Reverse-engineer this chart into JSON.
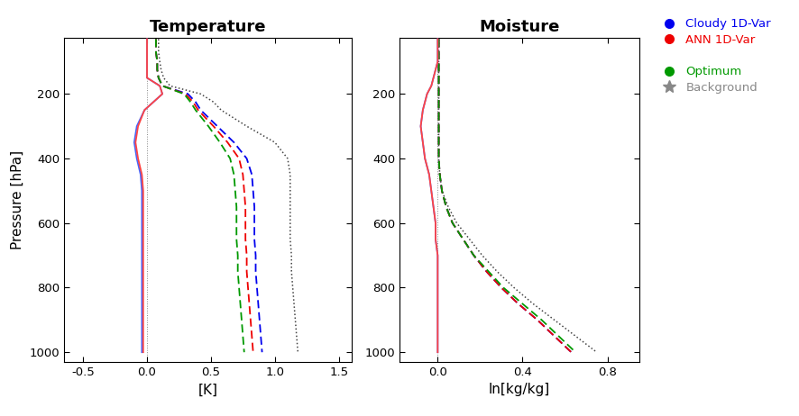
{
  "title_temp": "Temperature",
  "title_moist": "Moisture",
  "ylabel": "Pressure [hPa]",
  "xlabel_temp": "[K]",
  "xlabel_moist": "ln[kg/kg]",
  "pressure_levels": [
    30,
    50,
    70,
    100,
    125,
    150,
    175,
    200,
    225,
    250,
    300,
    350,
    400,
    450,
    500,
    550,
    600,
    650,
    700,
    750,
    800,
    850,
    900,
    950,
    1000
  ],
  "temp_xlim": [
    -0.65,
    1.6
  ],
  "moist_xlim": [
    -0.18,
    0.95
  ],
  "temp_xticks": [
    -0.5,
    0.0,
    0.5,
    1.0,
    1.5
  ],
  "moist_xticks": [
    0.0,
    0.4,
    0.8
  ],
  "ylim": [
    1030,
    25
  ],
  "yticks": [
    200,
    400,
    600,
    800,
    1000
  ],
  "temp_bias_blue": [
    0.0,
    0.0,
    0.0,
    0.0,
    0.0,
    0.0,
    0.1,
    0.12,
    0.05,
    -0.02,
    -0.08,
    -0.1,
    -0.08,
    -0.05,
    -0.04,
    -0.04,
    -0.04,
    -0.04,
    -0.04,
    -0.04,
    -0.04,
    -0.04,
    -0.04,
    -0.04,
    -0.04
  ],
  "temp_bias_red": [
    0.0,
    0.0,
    0.0,
    0.0,
    0.0,
    0.0,
    0.1,
    0.12,
    0.05,
    -0.02,
    -0.07,
    -0.09,
    -0.07,
    -0.04,
    -0.03,
    -0.03,
    -0.03,
    -0.03,
    -0.03,
    -0.03,
    -0.03,
    -0.03,
    -0.03,
    -0.03,
    -0.03
  ],
  "temp_rmse_blue": [
    0.07,
    0.07,
    0.07,
    0.08,
    0.08,
    0.09,
    0.12,
    0.32,
    0.38,
    0.42,
    0.55,
    0.68,
    0.78,
    0.82,
    0.83,
    0.84,
    0.84,
    0.84,
    0.85,
    0.85,
    0.86,
    0.87,
    0.88,
    0.89,
    0.9
  ],
  "temp_rmse_red": [
    0.07,
    0.07,
    0.07,
    0.08,
    0.08,
    0.09,
    0.12,
    0.3,
    0.36,
    0.4,
    0.52,
    0.63,
    0.72,
    0.75,
    0.76,
    0.77,
    0.77,
    0.77,
    0.78,
    0.78,
    0.79,
    0.8,
    0.81,
    0.82,
    0.83
  ],
  "temp_rmse_green": [
    0.07,
    0.07,
    0.07,
    0.08,
    0.08,
    0.09,
    0.12,
    0.29,
    0.34,
    0.38,
    0.48,
    0.57,
    0.65,
    0.68,
    0.69,
    0.7,
    0.7,
    0.7,
    0.71,
    0.71,
    0.72,
    0.73,
    0.74,
    0.75,
    0.76
  ],
  "temp_rmse_black": [
    0.09,
    0.09,
    0.09,
    0.1,
    0.11,
    0.13,
    0.18,
    0.42,
    0.52,
    0.58,
    0.78,
    1.0,
    1.1,
    1.12,
    1.12,
    1.12,
    1.12,
    1.12,
    1.13,
    1.13,
    1.14,
    1.15,
    1.16,
    1.17,
    1.18
  ],
  "moist_bias_blue": [
    0.0,
    0.0,
    0.0,
    0.0,
    -0.01,
    -0.02,
    -0.03,
    -0.05,
    -0.06,
    -0.07,
    -0.08,
    -0.07,
    -0.06,
    -0.04,
    -0.03,
    -0.02,
    -0.01,
    -0.01,
    0.0,
    0.0,
    0.0,
    0.0,
    0.0,
    0.0,
    0.0
  ],
  "moist_bias_red": [
    0.0,
    0.0,
    0.0,
    0.0,
    -0.01,
    -0.02,
    -0.03,
    -0.05,
    -0.06,
    -0.07,
    -0.08,
    -0.07,
    -0.06,
    -0.04,
    -0.03,
    -0.02,
    -0.01,
    -0.01,
    0.0,
    0.0,
    0.0,
    0.0,
    0.0,
    0.0,
    0.0
  ],
  "moist_rmse_blue": [
    0.005,
    0.005,
    0.005,
    0.005,
    0.005,
    0.005,
    0.005,
    0.005,
    0.005,
    0.005,
    0.005,
    0.005,
    0.005,
    0.01,
    0.02,
    0.04,
    0.07,
    0.12,
    0.17,
    0.23,
    0.3,
    0.38,
    0.47,
    0.55,
    0.63
  ],
  "moist_rmse_red": [
    0.005,
    0.005,
    0.005,
    0.005,
    0.005,
    0.005,
    0.005,
    0.005,
    0.005,
    0.005,
    0.005,
    0.005,
    0.005,
    0.01,
    0.02,
    0.04,
    0.07,
    0.12,
    0.17,
    0.23,
    0.3,
    0.38,
    0.47,
    0.55,
    0.63
  ],
  "moist_rmse_green": [
    0.005,
    0.005,
    0.005,
    0.005,
    0.005,
    0.005,
    0.005,
    0.005,
    0.005,
    0.005,
    0.005,
    0.005,
    0.005,
    0.01,
    0.02,
    0.04,
    0.07,
    0.12,
    0.17,
    0.24,
    0.31,
    0.4,
    0.49,
    0.57,
    0.65
  ],
  "moist_rmse_black": [
    0.005,
    0.005,
    0.005,
    0.005,
    0.005,
    0.005,
    0.005,
    0.005,
    0.005,
    0.005,
    0.005,
    0.005,
    0.005,
    0.01,
    0.02,
    0.05,
    0.09,
    0.15,
    0.21,
    0.28,
    0.36,
    0.45,
    0.55,
    0.65,
    0.75
  ],
  "legend_labels": [
    "Cloudy 1D-Var",
    "ANN 1D-Var",
    "",
    "Optimum",
    "Background"
  ],
  "legend_colors": [
    "#0000FF",
    "#FF0000",
    "#FFFFFF",
    "#00BB00",
    "#888888"
  ]
}
